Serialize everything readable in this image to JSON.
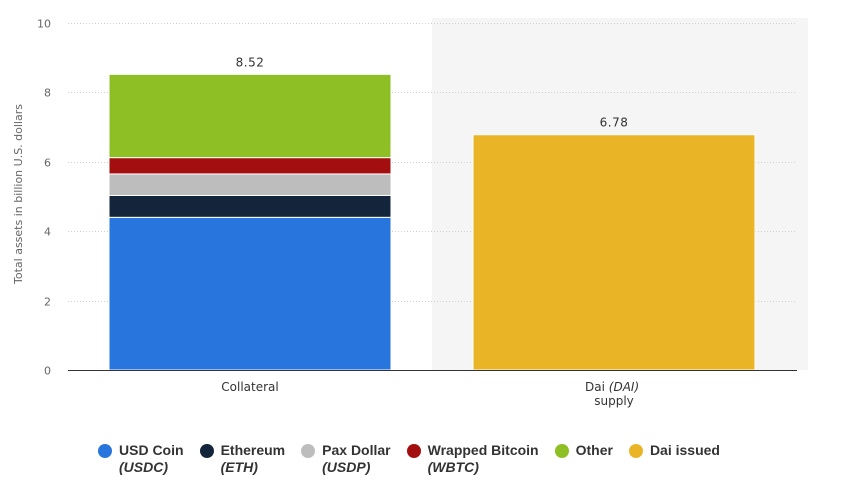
{
  "chart_data": {
    "type": "stacked bar",
    "ylabel": "Total assets in billion U.S. dollars",
    "ylim": [
      0,
      10
    ],
    "yticks": [
      "0",
      "2",
      "4",
      "6",
      "8",
      "10"
    ],
    "grid": true,
    "legend_position": "bottom",
    "categories": [
      {
        "main": "Collateral",
        "italic": "",
        "line2": ""
      },
      {
        "main": "Dai",
        "italic": "(DAI)",
        "line2": "supply"
      }
    ],
    "totals": [
      "8.52",
      "6.78"
    ],
    "series": [
      {
        "name": "USD Coin",
        "sub": "(USDC)",
        "color": "#2876dd",
        "values": [
          4.4,
          0
        ]
      },
      {
        "name": "Ethereum",
        "sub": "(ETH)",
        "color": "#13253b",
        "values": [
          0.63,
          0
        ]
      },
      {
        "name": "Pax Dollar",
        "sub": "(USDP)",
        "color": "#bdbdbd",
        "values": [
          0.62,
          0
        ]
      },
      {
        "name": "Wrapped Bitcoin",
        "sub": "(WBTC)",
        "color": "#a30e0e",
        "values": [
          0.47,
          0
        ]
      },
      {
        "name": "Other",
        "sub": "",
        "color": "#8ebf24",
        "values": [
          2.4,
          0
        ]
      },
      {
        "name": "Dai issued",
        "sub": "",
        "color": "#e9b526",
        "values": [
          0,
          6.78
        ]
      }
    ]
  }
}
